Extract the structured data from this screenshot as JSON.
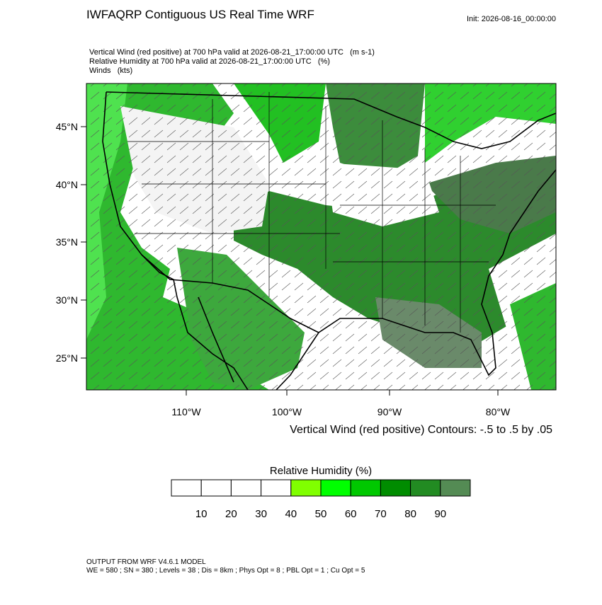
{
  "header": {
    "title": "IWFAQRP Contiguous US Real Time WRF",
    "init": "Init: 2026-08-16_00:00:00"
  },
  "fields": [
    "Vertical Wind (red positive) at 700 hPa valid at 2026-08-21_17:00:00 UTC   (m s-1)",
    "Relative Humidity at 700 hPa valid at 2026-08-21_17:00:00 UTC   (%)",
    "Winds   (kts)"
  ],
  "map": {
    "lat_labels": [
      "45°N",
      "40°N",
      "35°N",
      "30°N",
      "25°N"
    ],
    "lon_labels": [
      "110°W",
      "100°W",
      "90°W",
      "80°W"
    ],
    "contour_note": "Vertical Wind (red positive) Contours: -.5 to .5 by .05"
  },
  "colorbar": {
    "title": "Relative Humidity  (%)",
    "colors": [
      "#ffffff",
      "#ffffff",
      "#ffffff",
      "#ffffff",
      "#80ff00",
      "#00ff00",
      "#00c800",
      "#008c00",
      "#228b22",
      "#548b54"
    ],
    "labels": [
      10,
      20,
      30,
      40,
      50,
      60,
      70,
      80,
      90
    ]
  },
  "footer": [
    "OUTPUT FROM WRF V4.6.1 MODEL",
    "WE = 580 ; SN = 380 ; Levels = 38 ; Dis = 8km ; Phys Opt = 8 ; PBL Opt = 1 ; Cu Opt = 5"
  ]
}
